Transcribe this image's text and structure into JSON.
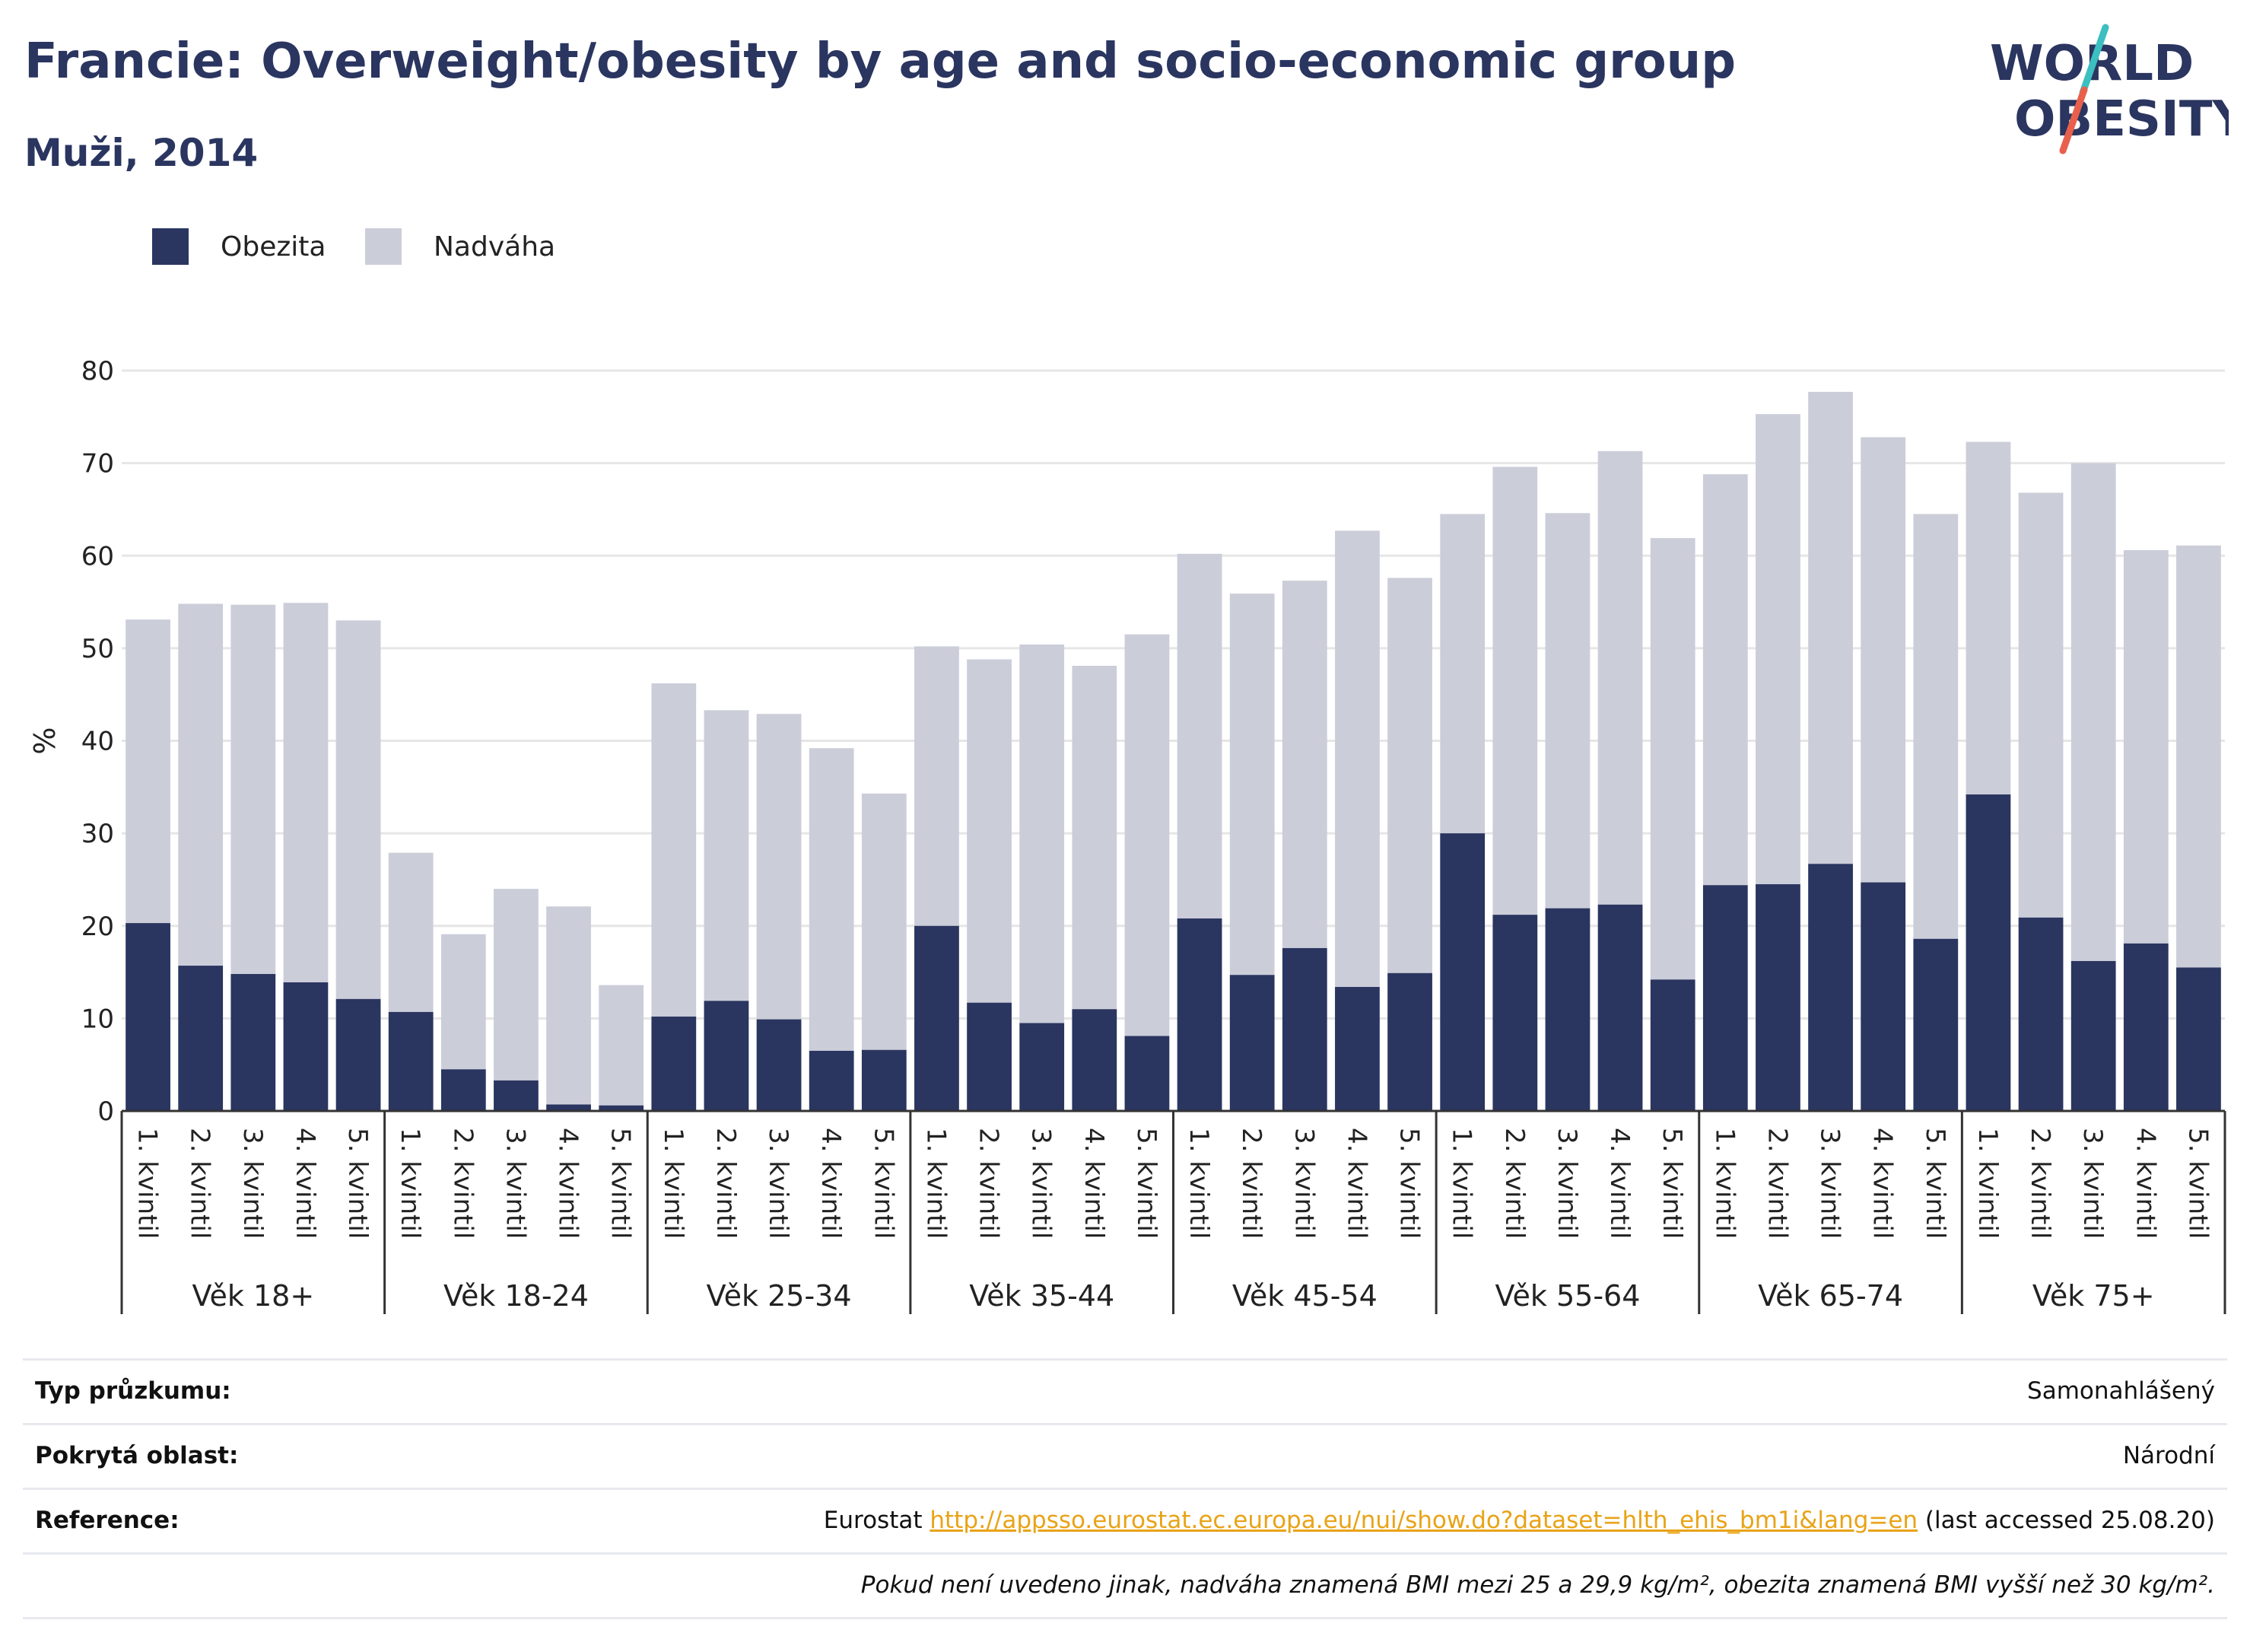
{
  "header": {
    "title": "Francie: Overweight/obesity by age and socio-economic group",
    "subtitle": "Muži, 2014"
  },
  "logo": {
    "line1": "WORLD",
    "line2": "OBESITY",
    "stripe_colors": [
      "#3cbfc1",
      "#e8604c"
    ]
  },
  "colors": {
    "obesity": "#2a3560",
    "overweight": "#cbcdd9",
    "grid": "#e6e6e6",
    "axis": "#333333"
  },
  "legend": [
    {
      "label": "Obezita",
      "color": "#2a3560"
    },
    {
      "label": "Nadváha",
      "color": "#cbcdd9"
    }
  ],
  "chart_data": {
    "type": "bar",
    "stacked": true,
    "ylabel": "%",
    "ylim": [
      0,
      80
    ],
    "yticks": [
      0,
      10,
      20,
      30,
      40,
      50,
      60,
      70,
      80
    ],
    "grid": true,
    "legend_position": "top-left",
    "subcategories": [
      "1. kvintil",
      "2. kvintil",
      "3. kvintil",
      "4. kvintil",
      "5. kvintil"
    ],
    "groups": [
      "Věk 18+",
      "Věk 18-24",
      "Věk 25-34",
      "Věk 35-44",
      "Věk 45-54",
      "Věk 55-64",
      "Věk 65-74",
      "Věk 75+"
    ],
    "series": [
      {
        "name": "Obezita",
        "values": [
          20.3,
          15.7,
          14.8,
          13.9,
          12.1,
          10.7,
          4.5,
          3.3,
          0.7,
          0.6,
          10.2,
          11.9,
          9.9,
          6.5,
          6.6,
          20.0,
          11.7,
          9.5,
          11.0,
          8.1,
          20.8,
          14.7,
          17.6,
          13.4,
          14.9,
          30.0,
          21.2,
          21.9,
          22.3,
          14.2,
          24.4,
          24.5,
          26.7,
          24.7,
          18.6,
          34.2,
          20.9,
          16.2,
          18.1,
          15.5
        ]
      },
      {
        "name": "Nadváha",
        "values": [
          32.8,
          39.1,
          39.9,
          41.0,
          40.9,
          17.2,
          14.6,
          20.7,
          21.4,
          13.0,
          36.0,
          31.4,
          33.0,
          32.7,
          27.7,
          30.2,
          37.1,
          40.9,
          37.1,
          43.4,
          39.4,
          41.2,
          39.7,
          49.3,
          42.7,
          34.5,
          48.4,
          42.7,
          49.0,
          47.7,
          44.4,
          50.8,
          51.0,
          48.1,
          45.9,
          38.1,
          45.9,
          53.8,
          42.5,
          45.6
        ]
      }
    ]
  },
  "info": [
    {
      "label": "Typ průzkumu:",
      "value": "Samonahlášený"
    },
    {
      "label": "Pokrytá oblast:",
      "value": "Národní"
    },
    {
      "label": "Reference:",
      "prefix": "Eurostat",
      "link": "http://appsso.eurostat.ec.europa.eu/nui/show.do?dataset=hlth_ehis_bm1i&lang=en",
      "suffix": "(last accessed 25.08.20)"
    },
    {
      "note": "Pokud není uvedeno jinak, nadváha znamená BMI mezi 25 a 29,9 kg/m², obezita znamená BMI vyšší než 30 kg/m²."
    }
  ]
}
